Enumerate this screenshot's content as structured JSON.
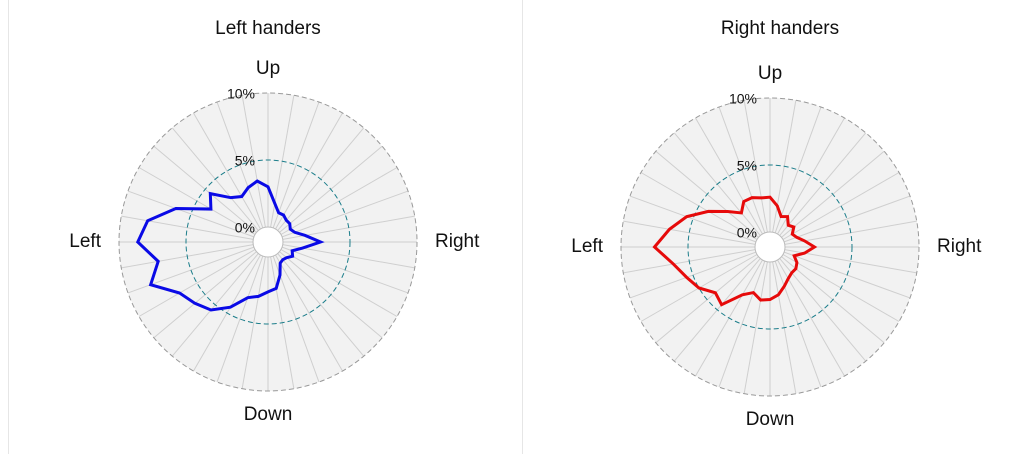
{
  "chart_data": [
    {
      "type": "radar",
      "title": "Left handers",
      "categories": [
        "Up",
        null,
        null,
        null,
        null,
        null,
        null,
        null,
        null,
        "Right",
        null,
        null,
        null,
        null,
        null,
        null,
        null,
        null,
        "Down",
        null,
        null,
        null,
        null,
        null,
        null,
        null,
        null,
        "Left",
        null,
        null,
        null,
        null,
        null,
        null,
        null,
        null
      ],
      "values": [
        3.0,
        1.8,
        1.2,
        1.2,
        1.0,
        1.0,
        0.8,
        1.0,
        1.7,
        2.8,
        1.5,
        0.8,
        1.0,
        0.7,
        0.6,
        0.7,
        1.5,
        2.4,
        2.6,
        3.0,
        3.3,
        4.5,
        5.5,
        6.0,
        6.5,
        8.2,
        7.2,
        8.6,
        8.0,
        6.2,
        3.8,
        4.5,
        3.2,
        2.8,
        3.2,
        3.5
      ],
      "color": "#0a0ae6",
      "rlim": [
        0,
        10
      ],
      "rticks": [
        {
          "value": 0,
          "label": "0%"
        },
        {
          "value": 5,
          "label": "5%"
        },
        {
          "value": 10,
          "label": "10%"
        }
      ]
    },
    {
      "type": "radar",
      "title": "Right handers",
      "categories": [
        "Up",
        null,
        null,
        null,
        null,
        null,
        null,
        null,
        null,
        "Right",
        null,
        null,
        null,
        null,
        null,
        null,
        null,
        null,
        "Down",
        null,
        null,
        null,
        null,
        null,
        null,
        null,
        null,
        "Left",
        null,
        null,
        null,
        null,
        null,
        null,
        null,
        null
      ],
      "values": [
        2.6,
        2.0,
        1.3,
        1.5,
        1.0,
        1.2,
        0.8,
        1.0,
        1.5,
        2.2,
        1.5,
        0.8,
        1.2,
        1.4,
        1.4,
        1.6,
        2.0,
        2.5,
        2.8,
        2.9,
        2.5,
        3.0,
        4.5,
        4.2,
        5.0,
        5.5,
        6.2,
        7.5,
        6.5,
        5.5,
        4.2,
        3.0,
        2.2,
        2.8,
        2.8,
        2.6
      ],
      "color": "#e60a0a",
      "rlim": [
        0,
        10
      ],
      "rticks": [
        {
          "value": 0,
          "label": "0%"
        },
        {
          "value": 5,
          "label": "5%"
        },
        {
          "value": 10,
          "label": "10%"
        }
      ]
    }
  ]
}
